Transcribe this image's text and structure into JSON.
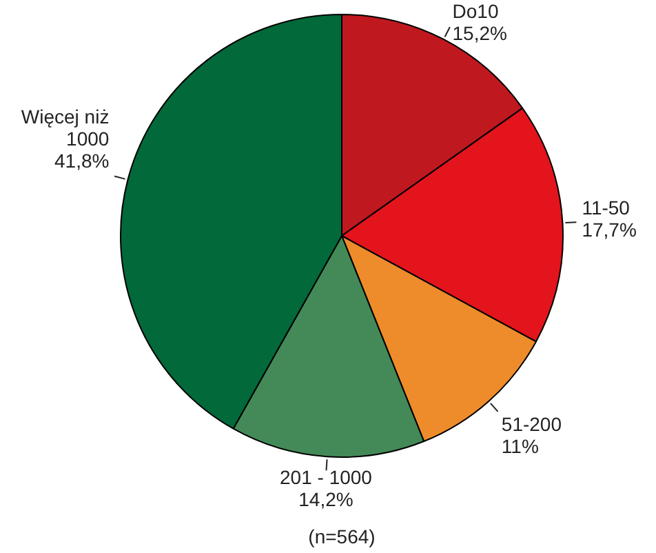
{
  "chart_data": {
    "type": "pie",
    "categories": [
      "Do10",
      "11-50",
      "51-200",
      "201 - 1000",
      "Więcej niż 1000"
    ],
    "values": [
      15.2,
      17.7,
      11,
      14.2,
      41.8
    ],
    "value_labels": [
      "15,2%",
      "17,7%",
      "11%",
      "14,2%",
      "41,8%"
    ],
    "colors": [
      "#c0181f",
      "#e3141c",
      "#ee8b2b",
      "#448a58",
      "#02693a"
    ],
    "legend": false,
    "annotations": [
      "(n=564)"
    ]
  }
}
